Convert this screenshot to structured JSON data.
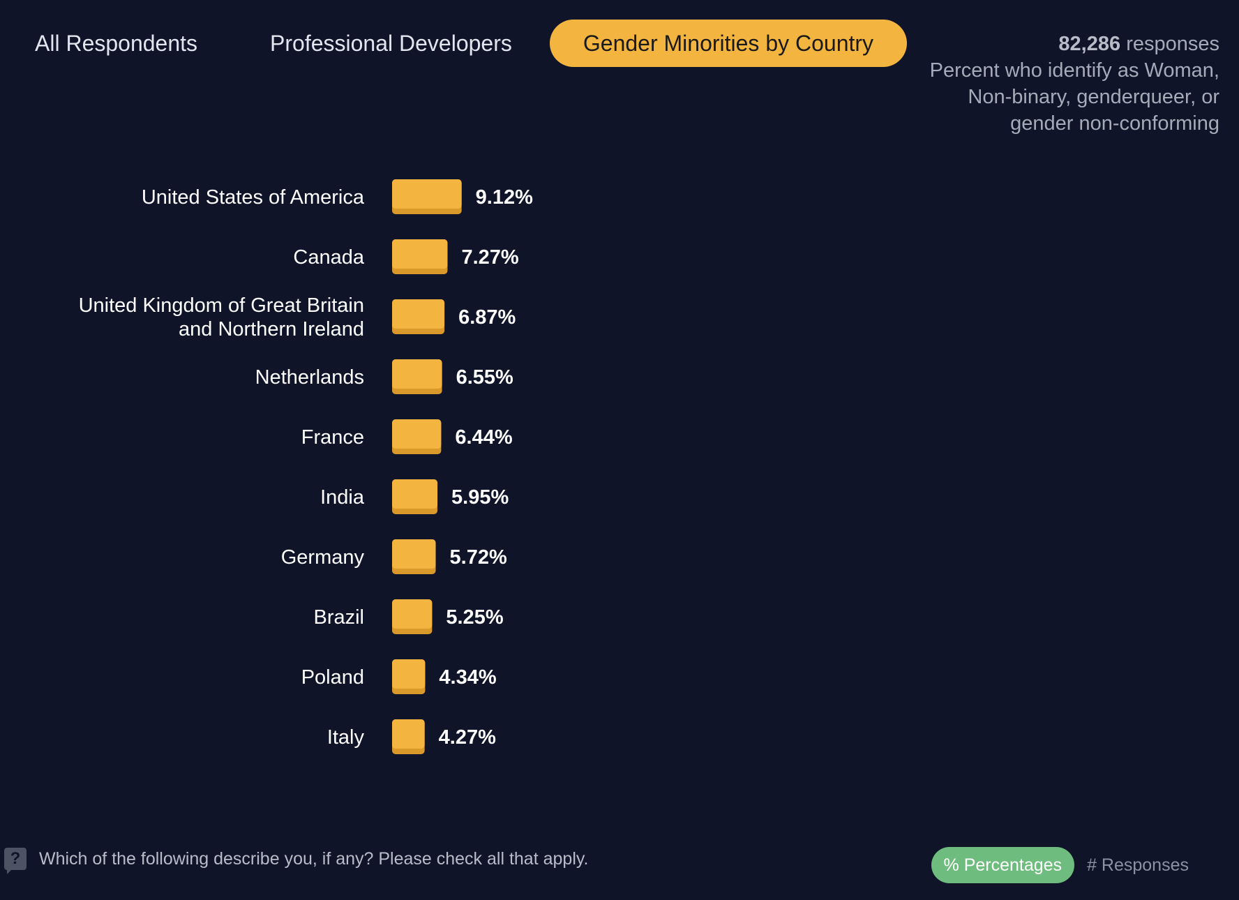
{
  "tabs": [
    {
      "label": "All Respondents",
      "active": false
    },
    {
      "label": "Professional Developers",
      "active": false
    },
    {
      "label": "Gender Minorities by Country",
      "active": true
    }
  ],
  "summary": {
    "count": "82,286",
    "count_suffix": "responses",
    "description_lines": [
      "Percent who identify as Woman,",
      "Non-binary, genderqueer, or",
      "gender non-conforming"
    ]
  },
  "chart_data": {
    "type": "bar",
    "orientation": "horizontal",
    "categories": [
      "United States of America",
      "Canada",
      "United Kingdom of Great Britain and Northern Ireland",
      "Netherlands",
      "France",
      "India",
      "Germany",
      "Brazil",
      "Poland",
      "Italy"
    ],
    "category_label_lines": [
      [
        "United States of America"
      ],
      [
        "Canada"
      ],
      [
        "United Kingdom of Great Britain",
        "and Northern Ireland"
      ],
      [
        "Netherlands"
      ],
      [
        "France"
      ],
      [
        "India"
      ],
      [
        "Germany"
      ],
      [
        "Brazil"
      ],
      [
        "Poland"
      ],
      [
        "Italy"
      ]
    ],
    "values": [
      9.12,
      7.27,
      6.87,
      6.55,
      6.44,
      5.95,
      5.72,
      5.25,
      4.34,
      4.27
    ],
    "value_labels": [
      "9.12%",
      "7.27%",
      "6.87%",
      "6.55%",
      "6.44%",
      "5.95%",
      "5.72%",
      "5.25%",
      "4.34%",
      "4.27%"
    ],
    "unit": "%",
    "bar_color": "#f4b540",
    "grid": false
  },
  "footer": {
    "question": "Which of the following describe you, if any? Please check all that apply.",
    "help_icon": "question-mark-icon",
    "toggle": [
      {
        "label": "% Percentages",
        "active": true
      },
      {
        "label": "# Responses",
        "active": false
      }
    ]
  },
  "colors": {
    "background": "#0f1429",
    "accent": "#f4b540",
    "toggle_active": "#6ebd7f"
  }
}
